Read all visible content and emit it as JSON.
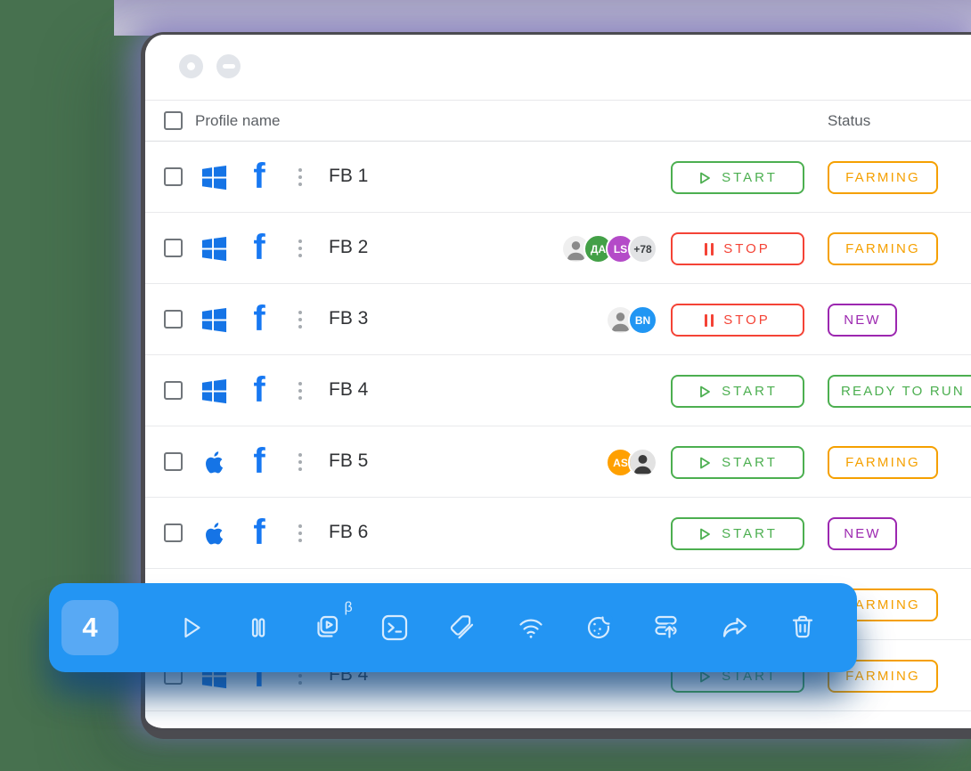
{
  "window_controls": {
    "record_label": "record",
    "minimize_label": "minimize"
  },
  "table": {
    "profile_header": "Profile name",
    "status_header": "Status"
  },
  "actions": {
    "start": {
      "label": "START"
    },
    "stop": {
      "label": "STOP"
    }
  },
  "status_colors": {
    "farming": "#F5A000",
    "new": "#9C27B0",
    "ready": "#4CAF50"
  },
  "accent_colors": {
    "toolbar_blue": "#2395F3",
    "brand_blue": "#1778F2",
    "green": "#4CAF50",
    "red": "#F44336"
  },
  "rows": [
    {
      "name": "FB 1",
      "os": "windows",
      "action": "start",
      "status": "FARMING",
      "status_type": "farming",
      "avatars": []
    },
    {
      "name": "FB 2",
      "os": "windows",
      "action": "stop",
      "status": "FARMING",
      "status_type": "farming",
      "avatars": [
        {
          "type": "photo",
          "variant": "light",
          "text": ""
        },
        {
          "type": "initials",
          "text": "ДА",
          "bg": "#43A047",
          "fg": "#FFFFFF"
        },
        {
          "type": "initials",
          "text": "LS",
          "bg": "#B44BC8",
          "fg": "#FFFFFF"
        },
        {
          "type": "count",
          "text": "+78",
          "bg": "#E2E3E5",
          "fg": "#3C4043"
        }
      ]
    },
    {
      "name": "FB 3",
      "os": "windows",
      "action": "stop",
      "status": "NEW",
      "status_type": "new",
      "avatars": [
        {
          "type": "photo",
          "variant": "light",
          "text": ""
        },
        {
          "type": "initials",
          "text": "BN",
          "bg": "#2196F3",
          "fg": "#FFFFFF"
        }
      ]
    },
    {
      "name": "FB 4",
      "os": "windows",
      "action": "start",
      "status": "READY TO RUN",
      "status_type": "ready",
      "avatars": []
    },
    {
      "name": "FB 5",
      "os": "apple",
      "action": "start",
      "status": "FARMING",
      "status_type": "farming",
      "avatars": [
        {
          "type": "initials",
          "text": "AS",
          "bg": "#FFA000",
          "fg": "#FFFFFF"
        },
        {
          "type": "photo",
          "variant": "dark",
          "text": ""
        }
      ]
    },
    {
      "name": "FB 6",
      "os": "apple",
      "action": "start",
      "status": "NEW",
      "status_type": "new",
      "avatars": []
    },
    {
      "name": "",
      "os": "windows",
      "action": "start",
      "status": "FARMING",
      "status_type": "farming",
      "avatars": []
    },
    {
      "name": "FB 4",
      "os": "windows",
      "action": "start",
      "status": "FARMING",
      "status_type": "farming",
      "avatars": []
    },
    {
      "name": "",
      "os": "apple",
      "action": "stop",
      "status": "",
      "status_type": "ready",
      "avatars": [
        {
          "type": "count",
          "text": "",
          "bg": "#E2E3E5",
          "fg": "#3C4043"
        },
        {
          "type": "initials",
          "text": "",
          "bg": "#43A047",
          "fg": "#FFFFFF"
        },
        {
          "type": "initials",
          "text": "",
          "bg": "#2196F3",
          "fg": "#FFFFFF"
        }
      ]
    }
  ],
  "toolbar": {
    "count": "4",
    "icons": [
      {
        "name": "play-icon"
      },
      {
        "name": "pause-icon"
      },
      {
        "name": "automation-icon",
        "badge": "β"
      },
      {
        "name": "console-icon"
      },
      {
        "name": "tags-icon"
      },
      {
        "name": "wifi-proxy-icon"
      },
      {
        "name": "cookies-icon"
      },
      {
        "name": "import-proxy-icon"
      },
      {
        "name": "share-icon"
      },
      {
        "name": "trash-icon"
      }
    ]
  }
}
